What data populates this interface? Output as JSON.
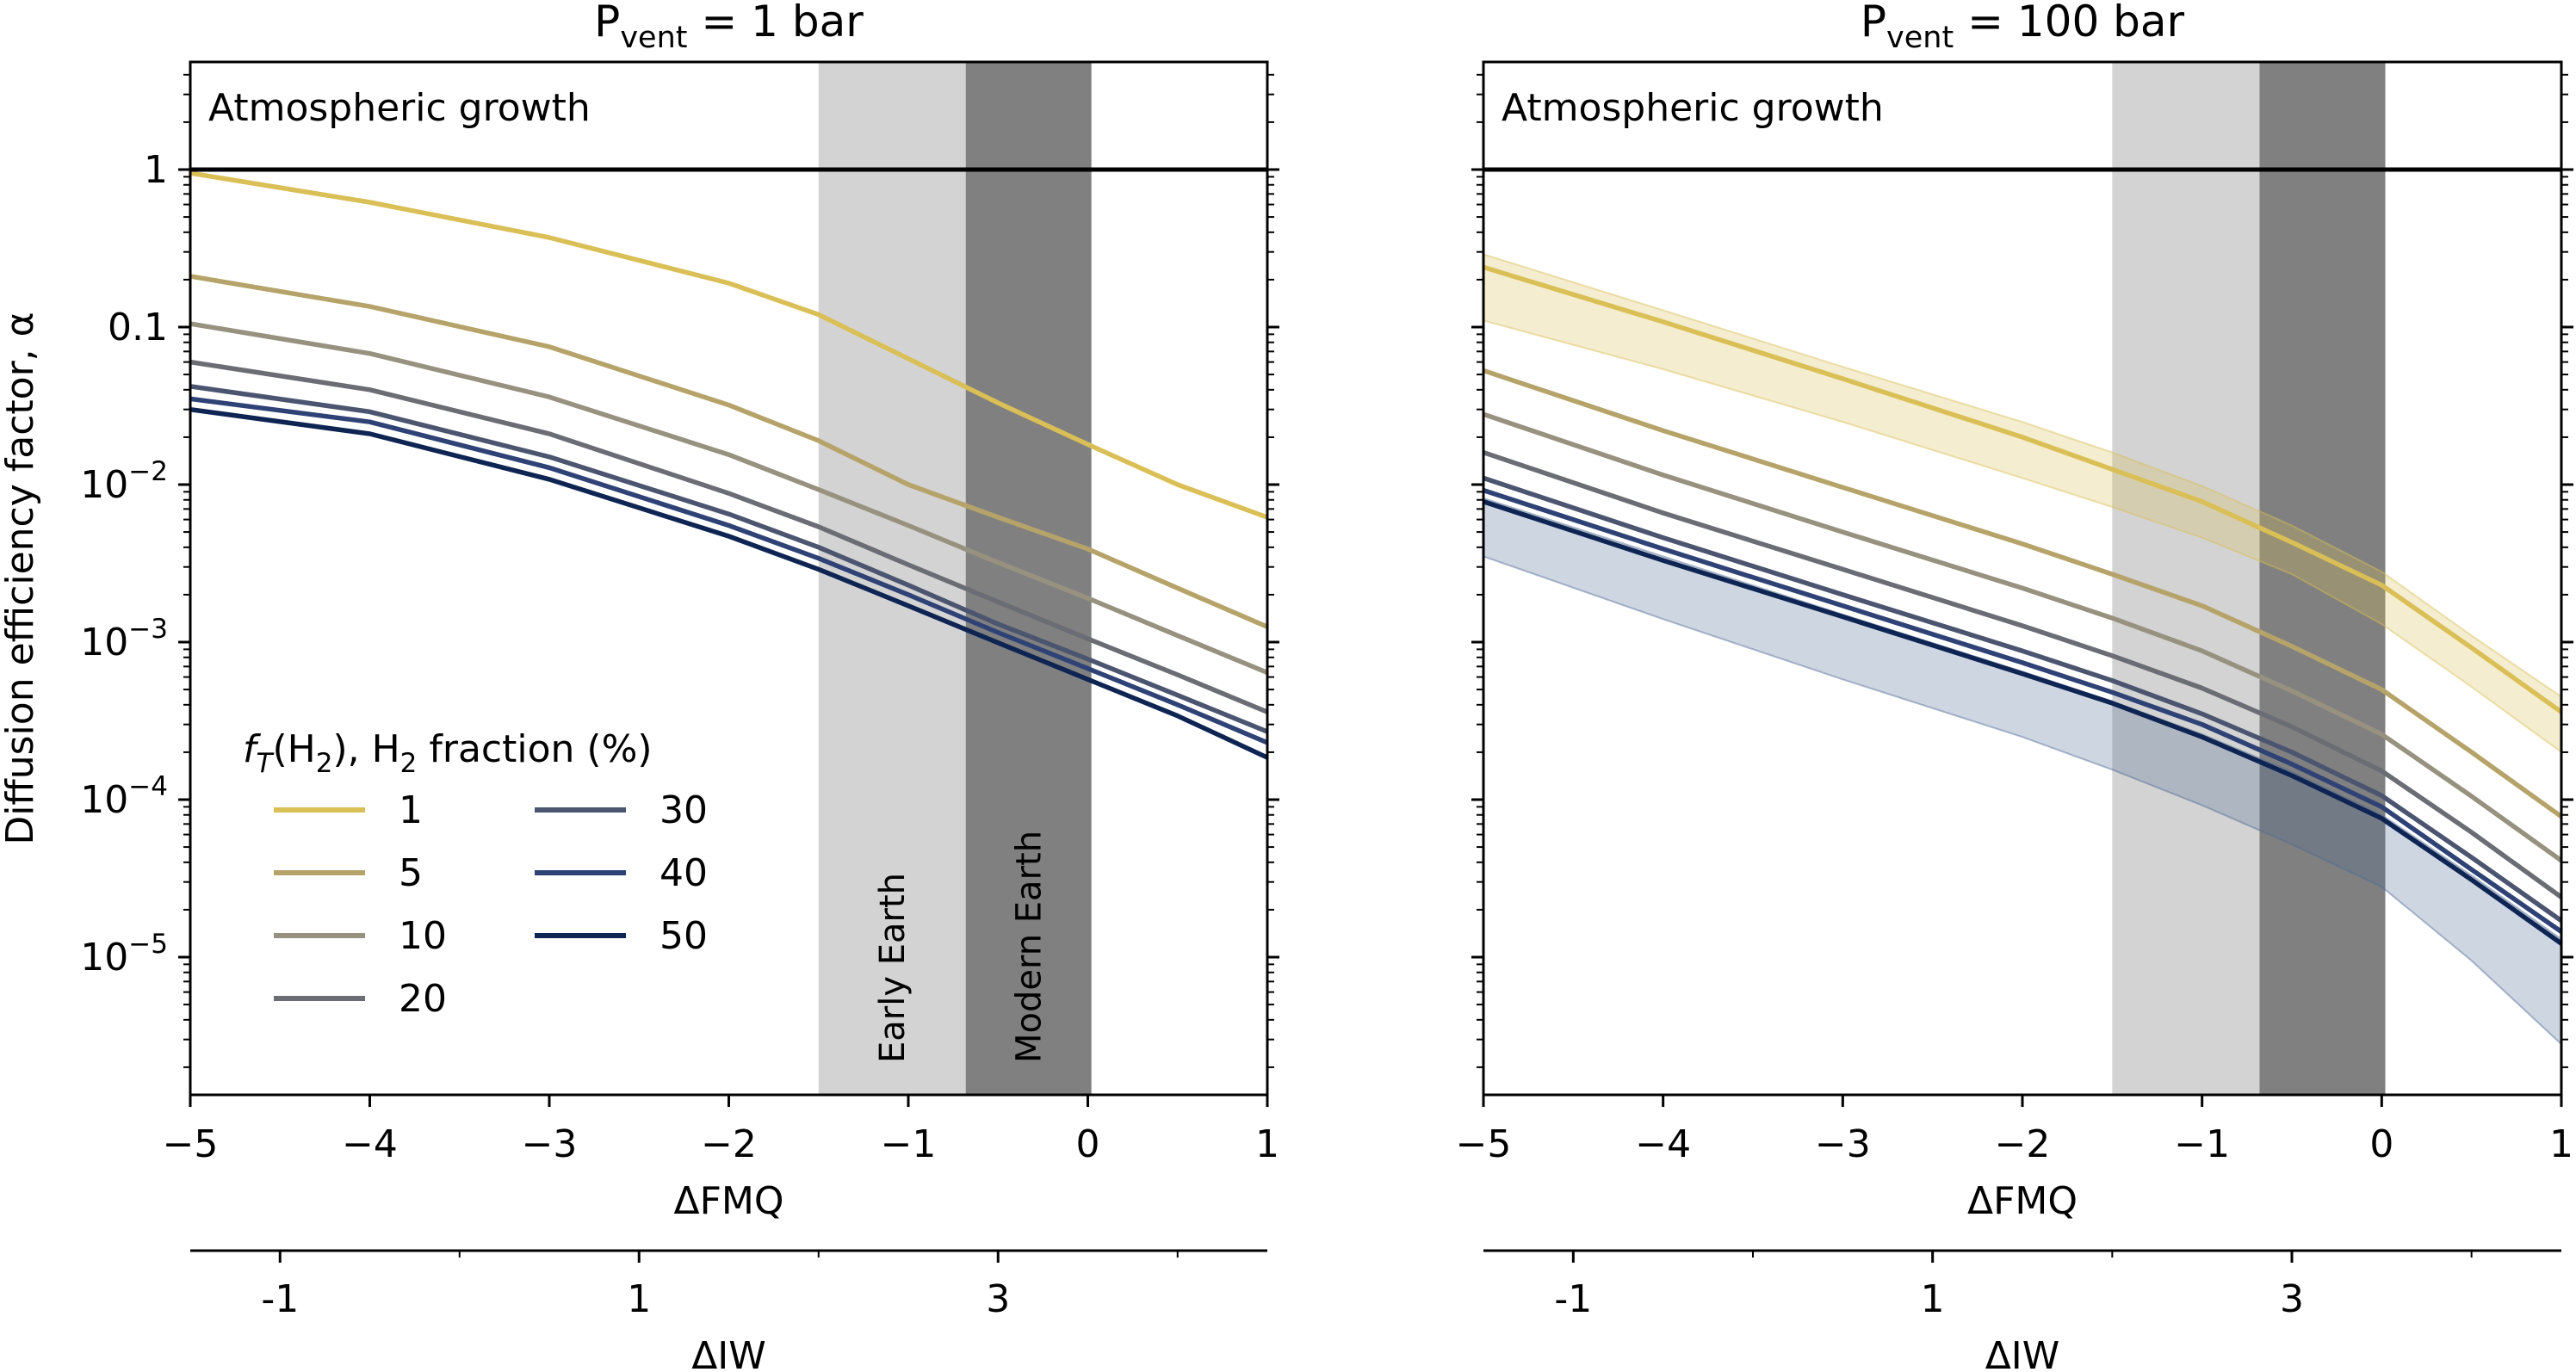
{
  "chart_data": {
    "shared": {
      "type": "line",
      "yscale": "log",
      "ylabel": "Diffusion efficiency factor, α",
      "xlabel": "ΔFMQ",
      "xlim": [
        -5,
        1
      ],
      "ylim": [
        2e-06,
        5
      ],
      "xticks": [
        {
          "value": -5,
          "label": "−5"
        },
        {
          "value": -4,
          "label": "−4"
        },
        {
          "value": -3,
          "label": "−3"
        },
        {
          "value": -2,
          "label": "−2"
        },
        {
          "value": -1,
          "label": "−1"
        },
        {
          "value": 0,
          "label": "0"
        },
        {
          "value": 1,
          "label": "1"
        }
      ],
      "yticks": [
        {
          "value": 1,
          "base": "1",
          "exp": ""
        },
        {
          "value": 0.1,
          "base": "0.1",
          "exp": ""
        },
        {
          "value": 0.01,
          "base": "10",
          "exp": "−2"
        },
        {
          "value": 0.001,
          "base": "10",
          "exp": "−3"
        },
        {
          "value": 0.0001,
          "base": "10",
          "exp": "−4"
        },
        {
          "value": 1e-05,
          "base": "10",
          "exp": "−5"
        }
      ],
      "secondary_axis": {
        "label": "ΔIW",
        "offset_from_fmq": 3.5,
        "ticks": [
          {
            "value": -1,
            "label": "-1"
          },
          {
            "value": 1,
            "label": "1"
          },
          {
            "value": 3,
            "label": "3"
          }
        ],
        "minor_ticks": [
          0,
          2,
          4
        ]
      },
      "threshold": {
        "value": 1,
        "label": "Atmospheric growth"
      },
      "regions": [
        {
          "name": "early-earth",
          "label": "Early Earth",
          "x0": -1.5,
          "x1": -0.68,
          "color": "#d3d3d3"
        },
        {
          "name": "modern-earth",
          "label": "Modern Earth",
          "x0": -0.68,
          "x1": 0.02,
          "color": "#808080"
        }
      ],
      "legend": {
        "title_italic": "f",
        "title_sub": "T",
        "title_mid": "(H",
        "title_sub2": "2",
        "title_end": "), H",
        "title_sub3": "2",
        "title_tail": " fraction (%)",
        "placement": "lower-left"
      },
      "x": [
        -5,
        -4,
        -3,
        -2,
        -1.5,
        -1,
        -0.5,
        0,
        0.5,
        1
      ]
    },
    "panels": [
      {
        "title_base": "P",
        "title_sub": "vent",
        "title_rest": " = 1 bar",
        "series": [
          {
            "name": "1",
            "color": "#d9bf56",
            "values": [
              0.95,
              0.62,
              0.37,
              0.19,
              0.12,
              0.063,
              0.033,
              0.018,
              0.01,
              0.0062
            ]
          },
          {
            "name": "5",
            "color": "#b5a36a",
            "values": [
              0.21,
              0.135,
              0.075,
              0.032,
              0.019,
              0.01,
              0.0062,
              0.0039,
              0.0022,
              0.00125
            ]
          },
          {
            "name": "10",
            "color": "#97927f",
            "values": [
              0.105,
              0.068,
              0.036,
              0.0155,
              0.0093,
              0.0055,
              0.0032,
              0.0019,
              0.0011,
              0.00064
            ]
          },
          {
            "name": "20",
            "color": "#6b6d74",
            "values": [
              0.06,
              0.04,
              0.021,
              0.0088,
              0.0054,
              0.0031,
              0.0018,
              0.00105,
              0.00062,
              0.00036
            ]
          },
          {
            "name": "30",
            "color": "#4c5570",
            "values": [
              0.042,
              0.029,
              0.015,
              0.0065,
              0.004,
              0.0023,
              0.0013,
              0.00078,
              0.00046,
              0.00027
            ]
          },
          {
            "name": "40",
            "color": "#2f4276",
            "values": [
              0.035,
              0.025,
              0.0128,
              0.0055,
              0.0034,
              0.002,
              0.00115,
              0.00068,
              0.0004,
              0.00023
            ]
          },
          {
            "name": "50",
            "color": "#0e2453",
            "values": [
              0.03,
              0.021,
              0.0108,
              0.0047,
              0.0029,
              0.0017,
              0.00099,
              0.00058,
              0.00034,
              0.000185
            ]
          }
        ],
        "bands": []
      },
      {
        "title_base": "P",
        "title_sub": "vent",
        "title_rest": " = 100 bar",
        "series": [
          {
            "name": "1",
            "color": "#d9bf56",
            "values": [
              0.24,
              0.108,
              0.047,
              0.02,
              0.0125,
              0.0078,
              0.0043,
              0.0023,
              0.00092,
              0.00036
            ]
          },
          {
            "name": "5",
            "color": "#b5a36a",
            "values": [
              0.053,
              0.022,
              0.0096,
              0.0042,
              0.0027,
              0.0017,
              0.00094,
              0.0005,
              0.0002,
              7.8e-05
            ]
          },
          {
            "name": "10",
            "color": "#97927f",
            "values": [
              0.028,
              0.0115,
              0.005,
              0.0022,
              0.00142,
              0.00088,
              0.00049,
              0.00026,
              0.000105,
              4.1e-05
            ]
          },
          {
            "name": "20",
            "color": "#6b6d74",
            "values": [
              0.016,
              0.0066,
              0.0029,
              0.00127,
              0.00082,
              0.00051,
              0.00029,
              0.000152,
              6.2e-05,
              2.4e-05
            ]
          },
          {
            "name": "30",
            "color": "#4c5570",
            "values": [
              0.011,
              0.0046,
              0.002,
              0.00088,
              0.00057,
              0.00035,
              0.0002,
              0.000106,
              4.3e-05,
              1.7e-05
            ]
          },
          {
            "name": "40",
            "color": "#2f4276",
            "values": [
              0.0092,
              0.0039,
              0.0017,
              0.00074,
              0.00048,
              0.0003,
              0.000168,
              9e-05,
              3.6e-05,
              1.45e-05
            ]
          },
          {
            "name": "50",
            "color": "#0e2453",
            "values": [
              0.0078,
              0.0033,
              0.00145,
              0.00063,
              0.00041,
              0.00025,
              0.000142,
              7.6e-05,
              3.1e-05,
              1.22e-05
            ]
          }
        ],
        "bands": [
          {
            "name": "band-1",
            "color": "#d9bf56",
            "lower": [
              0.11,
              0.054,
              0.025,
              0.011,
              0.0072,
              0.0046,
              0.0027,
              0.0013,
              0.00052,
              0.0002
            ],
            "upper": [
              0.29,
              0.128,
              0.056,
              0.025,
              0.016,
              0.0098,
              0.0055,
              0.0028,
              0.0011,
              0.00045
            ]
          },
          {
            "name": "band-50",
            "color": "#4f6a92",
            "lower": [
              0.0035,
              0.0014,
              0.00058,
              0.00025,
              0.000155,
              9.2e-05,
              5.2e-05,
              2.8e-05,
              9.5e-06,
              2.8e-06
            ],
            "upper": [
              0.0082,
              0.0035,
              0.0015,
              0.00065,
              0.00042,
              0.00026,
              0.00015,
              8e-05,
              3.3e-05,
              1.3e-05
            ]
          }
        ]
      }
    ]
  }
}
